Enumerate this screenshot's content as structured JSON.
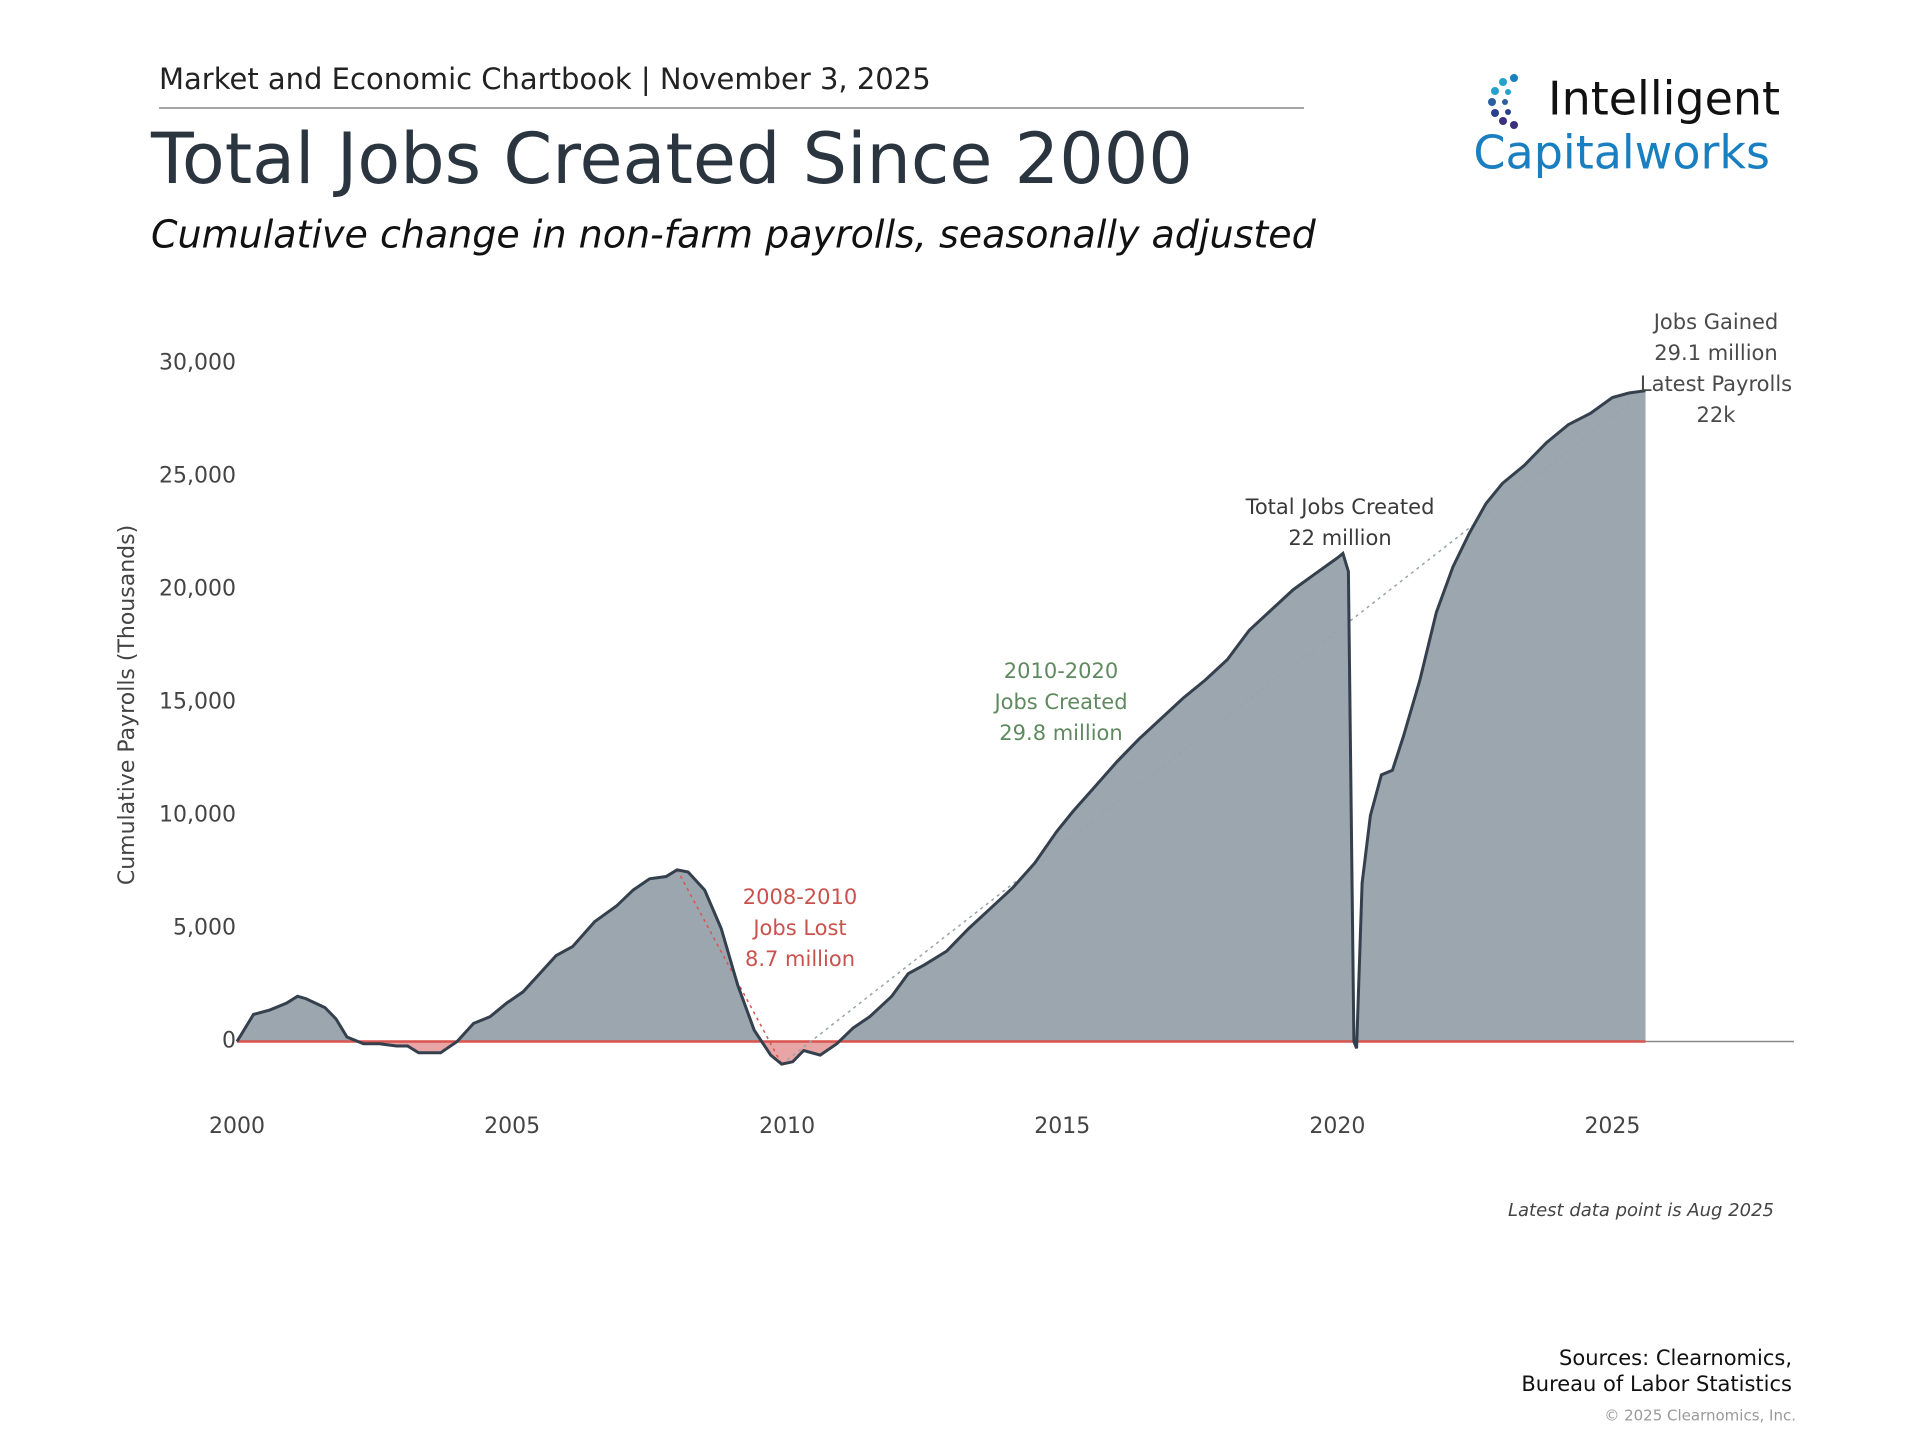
{
  "header": "Market and Economic Chartbook | November 3, 2025",
  "logo": {
    "line1": "Intelligent",
    "line2": "Capitalworks"
  },
  "chart_data": {
    "type": "area",
    "title": "Total Jobs Created Since 2000",
    "subtitle": "Cumulative change in non-farm payrolls, seasonally adjusted",
    "y_label": "Cumulative Payrolls (Thousands)",
    "x": [
      2000.0,
      2000.3,
      2000.6,
      2000.9,
      2001.1,
      2001.25,
      2001.6,
      2001.8,
      2002.0,
      2002.3,
      2002.6,
      2002.9,
      2003.1,
      2003.3,
      2003.7,
      2004.0,
      2004.3,
      2004.6,
      2004.9,
      2005.2,
      2005.5,
      2005.8,
      2006.1,
      2006.5,
      2006.9,
      2007.2,
      2007.5,
      2007.8,
      2008.0,
      2008.2,
      2008.5,
      2008.8,
      2009.1,
      2009.4,
      2009.7,
      2009.9,
      2010.1,
      2010.3,
      2010.6,
      2010.9,
      2011.2,
      2011.5,
      2011.9,
      2012.2,
      2012.5,
      2012.9,
      2013.3,
      2013.7,
      2014.1,
      2014.5,
      2014.9,
      2015.2,
      2015.6,
      2016.0,
      2016.4,
      2016.8,
      2017.2,
      2017.6,
      2018.0,
      2018.4,
      2018.8,
      2019.2,
      2019.6,
      2020.0,
      2020.1,
      2020.2,
      2020.3,
      2020.35,
      2020.45,
      2020.6,
      2020.8,
      2021.0,
      2021.2,
      2021.5,
      2021.8,
      2022.1,
      2022.4,
      2022.7,
      2023.0,
      2023.4,
      2023.8,
      2024.2,
      2024.6,
      2025.0,
      2025.3,
      2025.6
    ],
    "values": [
      0,
      1200,
      1400,
      1700,
      2000,
      1900,
      1500,
      1000,
      200,
      -100,
      -100,
      -200,
      -200,
      -500,
      -500,
      0,
      800,
      1100,
      1700,
      2200,
      3000,
      3800,
      4200,
      5300,
      6000,
      6700,
      7200,
      7300,
      7600,
      7500,
      6700,
      5000,
      2500,
      500,
      -600,
      -1000,
      -900,
      -400,
      -600,
      -100,
      600,
      1100,
      2000,
      3000,
      3400,
      4000,
      5000,
      5900,
      6800,
      7900,
      9300,
      10200,
      11300,
      12400,
      13400,
      14300,
      15200,
      16000,
      16900,
      18200,
      19100,
      20000,
      20700,
      21400,
      21600,
      20800,
      0,
      -300,
      7000,
      10000,
      11800,
      12000,
      13500,
      16000,
      19000,
      21000,
      22500,
      23800,
      24700,
      25500,
      26500,
      27300,
      27800,
      28500,
      28700,
      28800
    ],
    "color": "#9ba6ae",
    "line_color": "#34404d",
    "negative_color": "#e8a5a5",
    "zero_line_color": "#d9534f",
    "xlim": [
      2000,
      2028.3
    ],
    "xticks": [
      2000,
      2005,
      2010,
      2015,
      2020,
      2025
    ],
    "ylim": [
      -2500,
      31000
    ],
    "yticks": [
      0,
      {
        "value": 5000,
        "label": "5,000"
      },
      {
        "value": 10000,
        "label": "10,000"
      },
      {
        "value": 15000,
        "label": "15,000"
      },
      {
        "value": 20000,
        "label": "20,000"
      },
      {
        "value": 25000,
        "label": "25,000"
      },
      {
        "value": 30000,
        "label": "30,000"
      }
    ],
    "grid": false,
    "annotations": [
      {
        "lines": [
          "Jobs Gained",
          "29.1 million",
          "Latest Payrolls",
          "22k"
        ],
        "color": "#4a4a4a"
      },
      {
        "lines": [
          "Total Jobs Created",
          "22 million"
        ],
        "color": "#3a3a3a"
      },
      {
        "lines": [
          "2010-2020",
          "Jobs Created",
          "29.8 million"
        ],
        "color": "#5f8a5f"
      },
      {
        "lines": [
          "2008-2010",
          "Jobs Lost",
          "8.7 million"
        ],
        "color": "#c9524e"
      }
    ],
    "footnote": "Latest data point is Aug 2025"
  },
  "sources": [
    "Sources: Clearnomics,",
    "Bureau of Labor Statistics"
  ],
  "copyright": "© 2025 Clearnomics, Inc."
}
